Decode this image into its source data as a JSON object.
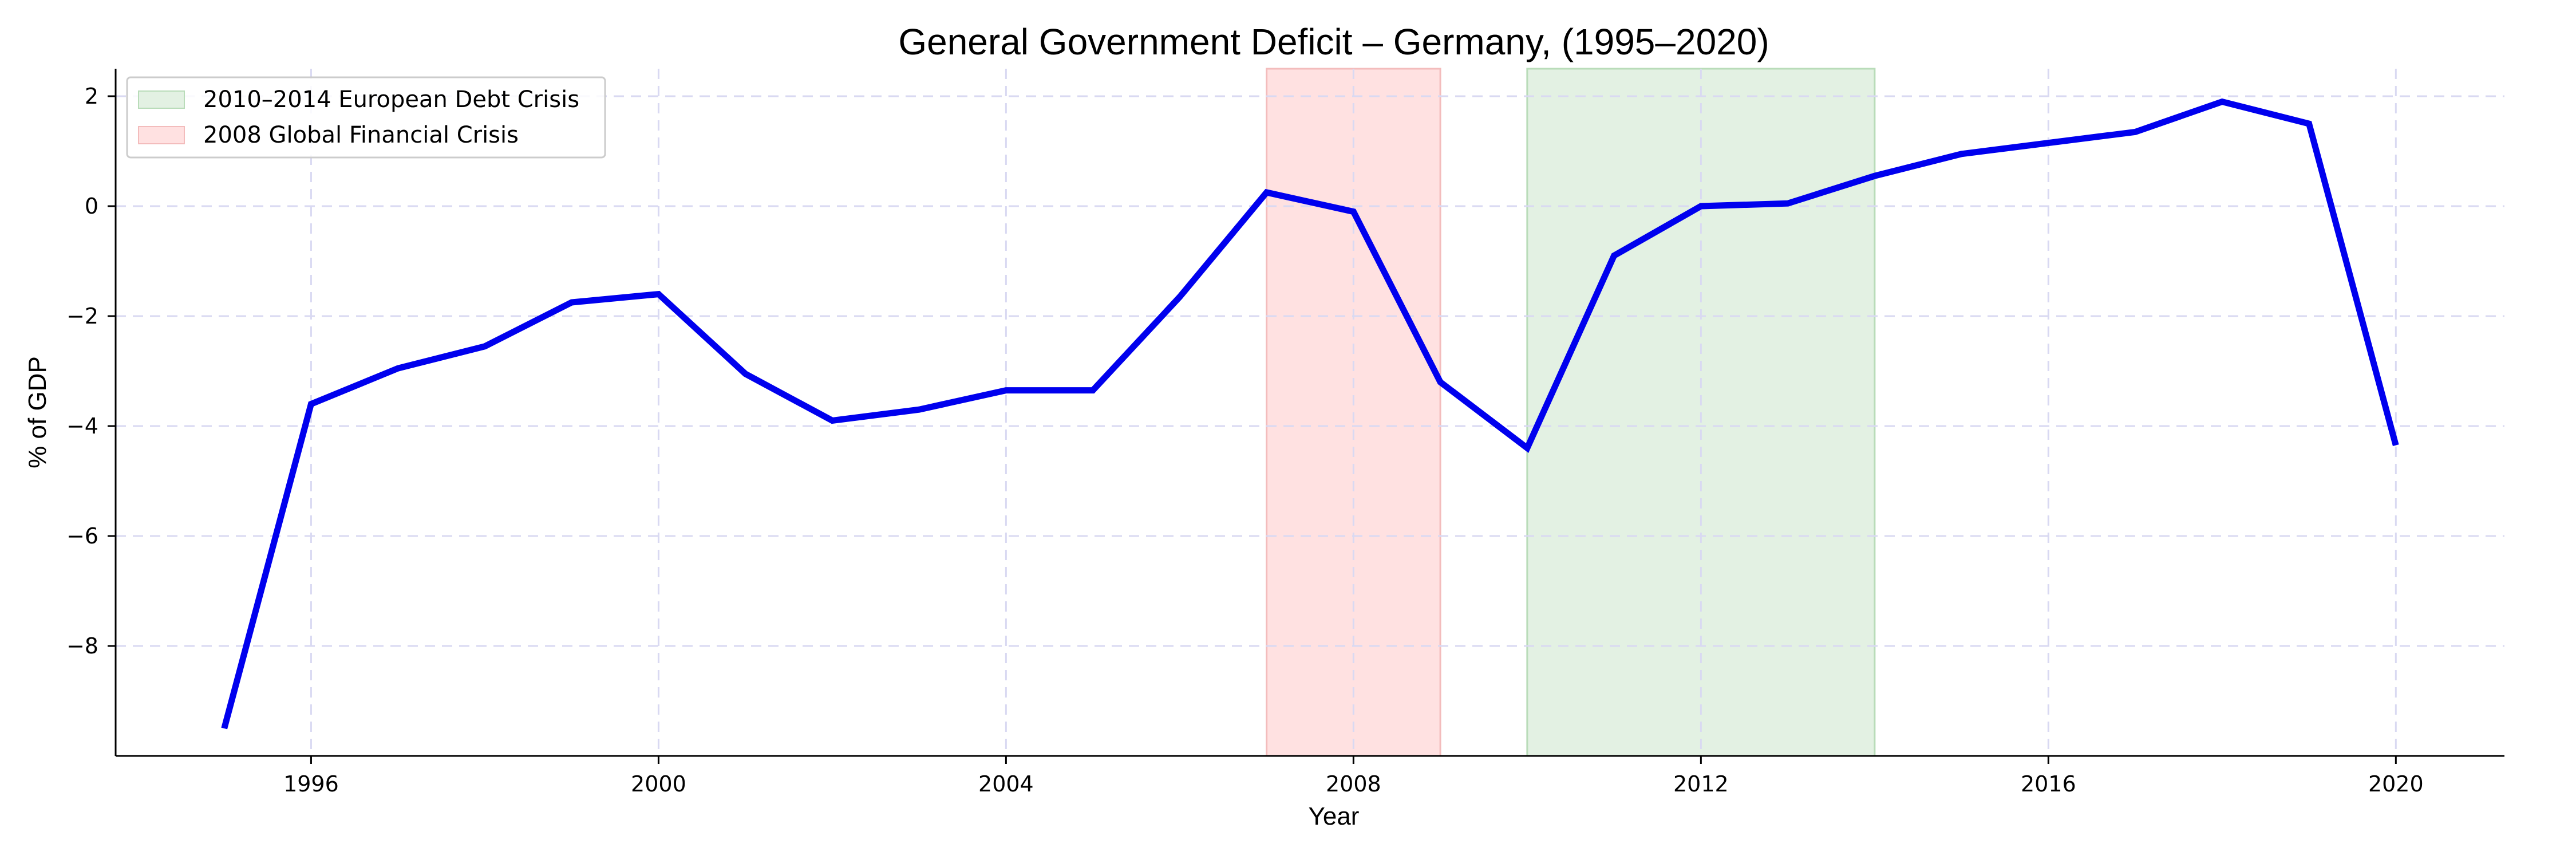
{
  "chart_data": {
    "type": "line",
    "title": "General Government Deficit – Germany, (1995–2020)",
    "xlabel": "Year",
    "ylabel": "% of GDP",
    "xlim": [
      1993.75,
      2021.25
    ],
    "ylim": [
      -10.0,
      2.5
    ],
    "x_ticks": [
      1996,
      2000,
      2004,
      2008,
      2012,
      2016,
      2020
    ],
    "y_ticks": [
      -8,
      -6,
      -4,
      -2,
      0,
      2
    ],
    "x_tick_labels": [
      "1996",
      "2000",
      "2004",
      "2008",
      "2012",
      "2016",
      "2020"
    ],
    "y_tick_labels": [
      "−8",
      "−6",
      "−4",
      "−2",
      "0",
      "2"
    ],
    "grid": true,
    "legend_position": "top-left",
    "series": [
      {
        "color": "#0000ee",
        "x": [
          1995,
          1996,
          1997,
          1998,
          1999,
          2000,
          2001,
          2002,
          2003,
          2004,
          2005,
          2006,
          2007,
          2008,
          2009,
          2010,
          2011,
          2012,
          2013,
          2014,
          2015,
          2016,
          2017,
          2018,
          2019,
          2020
        ],
        "y": [
          -9.5,
          -3.6,
          -2.95,
          -2.55,
          -1.75,
          -1.6,
          -3.05,
          -3.9,
          -3.7,
          -3.35,
          -3.35,
          -1.65,
          0.25,
          -0.1,
          -3.2,
          -4.4,
          -0.9,
          0.0,
          0.05,
          0.55,
          0.95,
          1.15,
          1.35,
          1.9,
          1.5,
          -4.35
        ]
      }
    ],
    "shaded_regions": [
      {
        "label": "2010–2014 European Debt Crisis",
        "x_start": 2010,
        "x_end": 2014,
        "color": "#e3f1e3",
        "edge": "#b9dcb9"
      },
      {
        "label": "2008 Global Financial Crisis",
        "x_start": 2007,
        "x_end": 2009,
        "color": "#ffe1e1",
        "edge": "#f3bcbc"
      }
    ]
  }
}
